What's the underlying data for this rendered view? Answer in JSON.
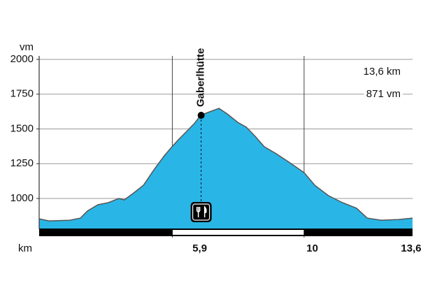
{
  "chart_data": {
    "type": "area",
    "y_label": "vm",
    "x_label": "km",
    "x": [
      0,
      0.36,
      1.12,
      1.5,
      1.76,
      2.14,
      2.52,
      2.9,
      3.1,
      3.41,
      3.8,
      4.18,
      4.56,
      4.84,
      5.07,
      5.32,
      5.65,
      5.88,
      6.21,
      6.55,
      6.85,
      7.23,
      7.54,
      7.87,
      8.2,
      8.63,
      9.14,
      9.65,
      10.04,
      10.54,
      11.05,
      11.56,
      11.95,
      12.46,
      13.09,
      13.6
    ],
    "values": [
      854,
      839,
      844,
      859,
      910,
      955,
      970,
      1000,
      990,
      1035,
      1095,
      1206,
      1307,
      1372,
      1422,
      1472,
      1538,
      1598,
      1623,
      1648,
      1608,
      1548,
      1513,
      1447,
      1372,
      1322,
      1256,
      1186,
      1095,
      1020,
      970,
      930,
      859,
      844,
      849,
      859
    ],
    "color": "#29b6e6",
    "xlim": [
      0,
      13.6
    ],
    "ylim": [
      780,
      2000
    ],
    "yticks": [
      1000,
      1250,
      1500,
      1750,
      2000
    ],
    "xticks": [
      {
        "value": 5.9,
        "label": "5,9"
      },
      10,
      {
        "value": 13.6,
        "label": "13,6"
      }
    ],
    "xgrid": [
      4.85,
      9.65
    ],
    "grid": true,
    "stats": [
      "13,6 km",
      "871 vm"
    ],
    "annotations": [
      {
        "x": 5.9,
        "y": 1598,
        "label": "Gaberlhütte"
      }
    ]
  }
}
